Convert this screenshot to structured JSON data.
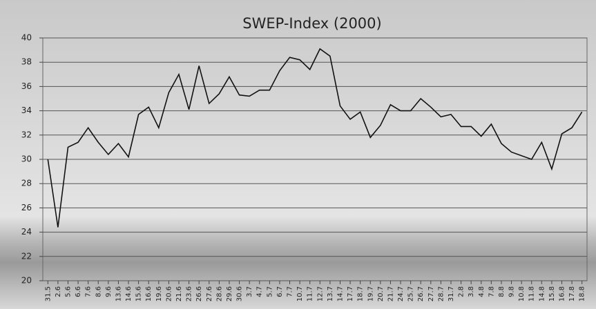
{
  "chart_data": {
    "type": "line",
    "title": "SWEP-Index (2000)",
    "categories": [
      "31.5",
      "2.6",
      "5.6",
      "6.6",
      "7.6",
      "8.6",
      "9.6",
      "13.6",
      "14.6",
      "15.6",
      "16.6",
      "19.6",
      "20.6",
      "21.6",
      "23.6",
      "26.6",
      "27.6",
      "28.6",
      "29.6",
      "30.6",
      "3.7",
      "4.7",
      "5.7",
      "6.7",
      "7.7",
      "10.7",
      "11.7",
      "12.7",
      "13.7",
      "14.7",
      "17.7",
      "18.7",
      "19.7",
      "20.7",
      "21.7",
      "24.7",
      "25.7",
      "26.7",
      "27.7",
      "28.7",
      "31.7",
      "2.8",
      "3.8",
      "4.8",
      "7.8",
      "8.8",
      "9.8",
      "10.8",
      "11.8",
      "14.8",
      "15.8",
      "16.8",
      "17.8",
      "18.8"
    ],
    "values": [
      30.0,
      24.4,
      31.0,
      31.4,
      32.6,
      31.4,
      30.4,
      31.3,
      30.2,
      33.7,
      34.3,
      32.6,
      35.5,
      37.0,
      34.1,
      37.7,
      34.6,
      35.4,
      36.8,
      35.3,
      35.2,
      35.7,
      35.7,
      37.3,
      38.4,
      38.2,
      37.4,
      39.1,
      38.5,
      34.4,
      33.3,
      33.9,
      31.8,
      32.8,
      34.5,
      34.0,
      34.0,
      35.0,
      34.3,
      33.5,
      33.7,
      32.7,
      32.7,
      31.9,
      32.9,
      31.3,
      30.6,
      30.3,
      30.0,
      31.4,
      29.2,
      32.1,
      32.6,
      33.9
    ],
    "color": "#111111",
    "ylim": [
      20,
      40
    ],
    "yticks": [
      20,
      22,
      24,
      26,
      28,
      30,
      32,
      34,
      36,
      38,
      40
    ],
    "grid": true
  }
}
